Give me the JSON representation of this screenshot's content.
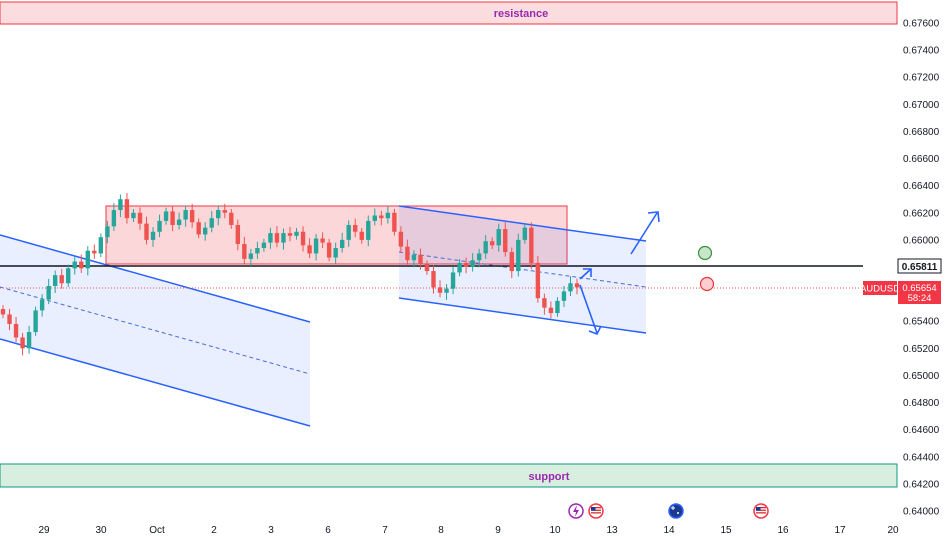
{
  "chart_data": {
    "type": "candlestick",
    "symbol": "AUDUSD",
    "y_axis": {
      "range": [
        0.6394,
        0.6779
      ],
      "ticks": [
        "0.67600",
        "0.67400",
        "0.67200",
        "0.67000",
        "0.66800",
        "0.66600",
        "0.66400",
        "0.66200",
        "0.66000",
        "0.65800",
        "0.65600",
        "0.65400",
        "0.65200",
        "0.65000",
        "0.64800",
        "0.64600",
        "0.64400",
        "0.64200",
        "0.64000"
      ]
    },
    "x_axis": {
      "labels": [
        "29",
        "30",
        "Oct",
        "2",
        "3",
        "6",
        "7",
        "8",
        "9",
        "10",
        "13",
        "14",
        "15",
        "16",
        "17",
        "20"
      ]
    },
    "price_tags": {
      "level": {
        "value": "0.65811",
        "text": "0.65811"
      },
      "current": {
        "symbol": "AUDUSD",
        "value": "0.65654",
        "countdown": "58:24"
      }
    },
    "zones": {
      "resistance": {
        "label": "resistance",
        "from": 0.676,
        "to": 0.6779
      },
      "support": {
        "label": "support",
        "from": 0.6417,
        "to": 0.6436
      },
      "range_box": {
        "from": 0.6585,
        "to": 0.6627
      }
    },
    "horizontal_line": 0.65811,
    "current_price": 0.65654,
    "ohlc_sample": [
      0.6545,
      0.6538,
      0.6528,
      0.652,
      0.6532,
      0.6548,
      0.6556,
      0.6566,
      0.6574,
      0.6568,
      0.6579,
      0.6584,
      0.6579,
      0.6592,
      0.659,
      0.6602,
      0.661,
      0.6622,
      0.663,
      0.6616,
      0.662,
      0.6612,
      0.66,
      0.6606,
      0.6614,
      0.6621,
      0.6611,
      0.6615,
      0.6622,
      0.6613,
      0.6604,
      0.6609,
      0.6616,
      0.6622,
      0.662,
      0.6611,
      0.6597,
      0.6586,
      0.659,
      0.6594,
      0.6598,
      0.6605,
      0.6598,
      0.6605,
      0.6603,
      0.6606,
      0.6596,
      0.659,
      0.6601,
      0.6598,
      0.6587,
      0.6594,
      0.66,
      0.6611,
      0.6606,
      0.66,
      0.6614,
      0.6618,
      0.6616,
      0.662,
      0.6606,
      0.6595,
      0.6585,
      0.6589,
      0.6582,
      0.6577,
      0.6565,
      0.6561,
      0.6564,
      0.6576,
      0.6583,
      0.658,
      0.6585,
      0.659,
      0.6599,
      0.6596,
      0.6608,
      0.6591,
      0.6577,
      0.66,
      0.6609,
      0.6583,
      0.6557,
      0.655,
      0.6546,
      0.6555,
      0.6562,
      0.6568,
      0.6565
    ],
    "colors": {
      "up": "#26a69a",
      "down": "#ef5350",
      "channel": "#2962ff",
      "resistance": "#f23645",
      "support": "#089981",
      "label_purple": "#9c27b0"
    },
    "markers": {
      "green_circle": {
        "color": "#4caf50",
        "price": 0.66
      },
      "red_circle": {
        "color": "#f23645",
        "price": 0.65654
      }
    },
    "event_icons": [
      "lightning-icon",
      "flag-us-icon",
      "flag-au-icon",
      "flag-us-icon"
    ]
  }
}
